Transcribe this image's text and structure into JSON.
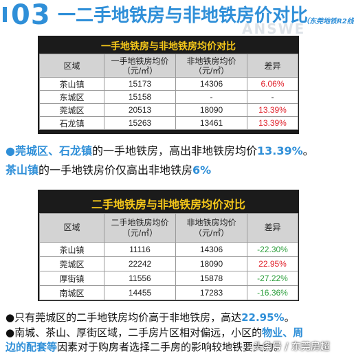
{
  "header": {
    "number": "03",
    "title": "一二手地铁房与非地铁房价对比",
    "subtitle": "（东莞地铁R2线",
    "watermark": "ANSWE"
  },
  "table1": {
    "title": "一手地铁房与非地铁房均价对比",
    "headers": [
      "区域",
      "一手地铁房均价\n（元/㎡）",
      "非地铁房均价\n（元/㎡）",
      "差异"
    ],
    "rows": [
      [
        "茶山镇",
        "15173",
        "14306",
        "6.06%"
      ],
      [
        "东城区",
        "15158",
        "-",
        "-"
      ],
      [
        "莞城区",
        "20513",
        "18090",
        "13.39%"
      ],
      [
        "石龙镇",
        "15263",
        "13461",
        "13.39%"
      ]
    ]
  },
  "text1": {
    "bullet": "●",
    "hl1": "莞城区、石龙镇",
    "mid": "的一手地铁房，高出非地铁房均价",
    "hl2": "13.39%",
    "end": "。"
  },
  "text2": {
    "hl1": "茶山镇",
    "mid": "的一手地铁房价仅高出非地铁房",
    "hl2": "6%"
  },
  "table2": {
    "title": "二手地铁房与非地铁房均价对比",
    "headers": [
      "区域",
      "二手地铁房均价\n（元/㎡）",
      "非地铁房均价\n（元/㎡）",
      "差异"
    ],
    "rows": [
      [
        "茶山镇",
        "11116",
        "14306",
        "-22.30%"
      ],
      [
        "莞城区",
        "22242",
        "18090",
        "22.95%"
      ],
      [
        "厚街镇",
        "11556",
        "15878",
        "-27.22%"
      ],
      [
        "南城区",
        "14455",
        "17283",
        "-16.36%"
      ]
    ]
  },
  "text3": {
    "bullet": "●",
    "mid": "只有莞城区的二手地铁房均价高于非地铁房，高达",
    "hl": "22.95%",
    "end": "。"
  },
  "text4": {
    "bullet": "●",
    "mid": "南城、茶山、厚街区域，二手房片区相对偏远，小区的",
    "hl": "物业、周"
  },
  "text5": {
    "hl": "边的配套等",
    "mid": "因素对于购房者选择二手房的影响较地铁要大的。"
  },
  "bottom_watermark": "头条号 / 东莞房超",
  "colors": {
    "accent_blue": "#2f8fd8",
    "title_yellow": "#f5c71a",
    "positive_red": "#e0202a",
    "negative_green": "#2c9f3c"
  }
}
